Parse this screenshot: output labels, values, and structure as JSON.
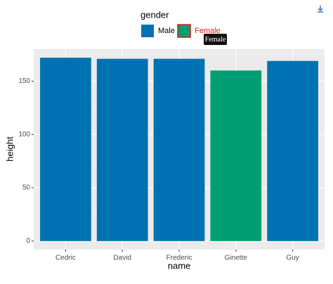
{
  "chart_data": {
    "type": "bar",
    "x_label": "name",
    "y_label": "height",
    "legend_title": "gender",
    "categories": [
      "Cedric",
      "David",
      "Frederic",
      "Ginette",
      "Guy"
    ],
    "series": [
      {
        "name": "Male",
        "color": "#0072b2",
        "values": [
          172,
          171,
          171,
          null,
          169
        ]
      },
      {
        "name": "Female",
        "color": "#009e73",
        "values": [
          null,
          null,
          null,
          160,
          null
        ]
      }
    ],
    "ylim": [
      -8,
      180
    ],
    "yticks": [
      0,
      50,
      100,
      150
    ],
    "minor_yticks": [
      25,
      75,
      125,
      175
    ],
    "grid": true,
    "legend_position": "top",
    "tooltip": "Female"
  }
}
